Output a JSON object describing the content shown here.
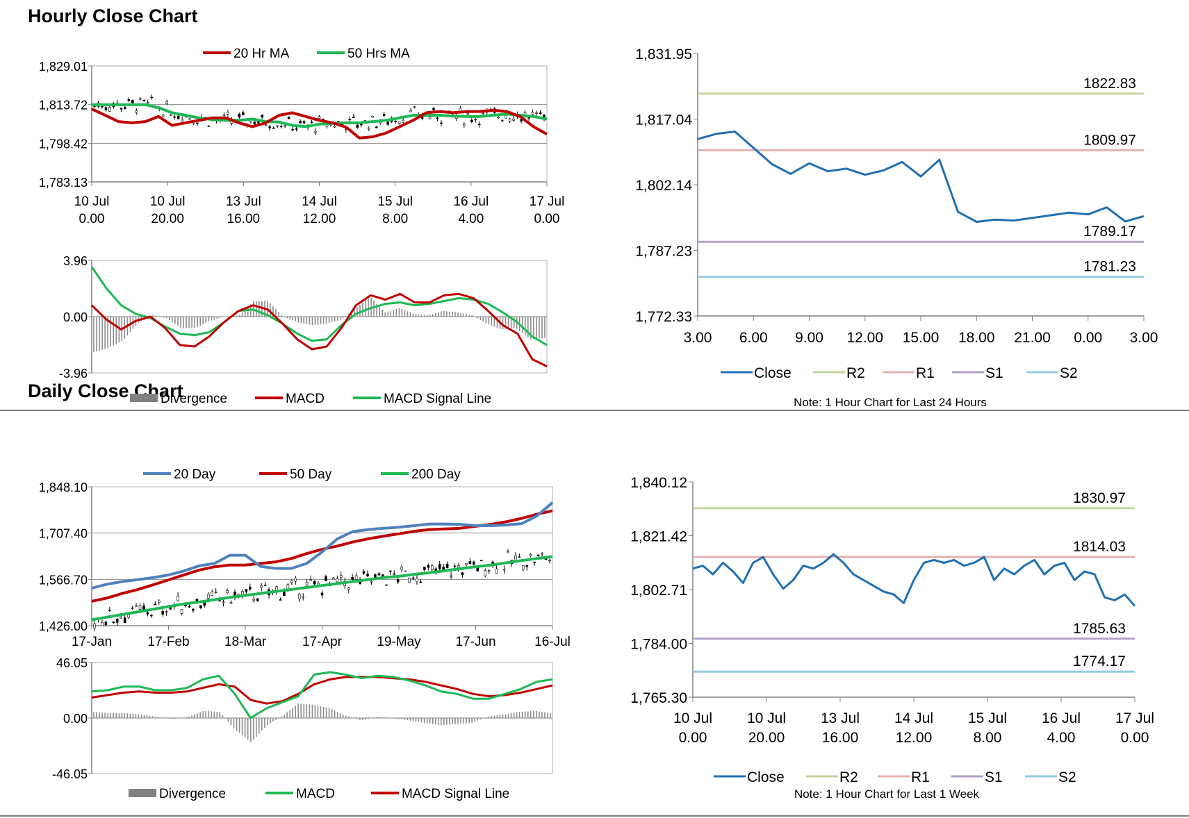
{
  "sections": {
    "hourly_title": "Hourly Close Chart",
    "daily_title": "Daily Close Chart"
  },
  "colors": {
    "red": "#c00000",
    "green": "#1db954",
    "blue_ma": "#4f81bd",
    "close": "#1f6fb2",
    "R2": "#c3d69b",
    "R1": "#e6b0b0",
    "S1": "#b1a0c7",
    "S2": "#93cddd",
    "grid": "#808080",
    "bar": "#808080",
    "candle": "#000000"
  },
  "chart_data": [
    {
      "id": "hourly-price",
      "type": "candlestick+line",
      "legend": [
        "20 Hr MA",
        "50 Hrs MA"
      ],
      "yticks": [
        "1,829.01",
        "1,813.72",
        "1,798.42",
        "1,783.13"
      ],
      "ylim": [
        1783.13,
        1829.01
      ],
      "xticks": [
        [
          "10 Jul",
          "0.00"
        ],
        [
          "10 Jul",
          "20.00"
        ],
        [
          "13 Jul",
          "16.00"
        ],
        [
          "14 Jul",
          "12.00"
        ],
        [
          "15 Jul",
          "8.00"
        ],
        [
          "16 Jul",
          "4.00"
        ],
        [
          "17 Jul",
          "0.00"
        ]
      ],
      "ma20": [
        1812,
        1809.5,
        1807,
        1806.5,
        1807,
        1809,
        1805.5,
        1806.5,
        1807.5,
        1808.5,
        1808.5,
        1806.5,
        1805,
        1806.5,
        1809.5,
        1810.5,
        1809,
        1807.5,
        1806.5,
        1804.8,
        1800.5,
        1801,
        1802.5,
        1805,
        1807.5,
        1810.5,
        1811,
        1810.5,
        1811,
        1811,
        1811.5,
        1811,
        1809,
        1805,
        1802
      ],
      "ma50": [
        1813.7,
        1813.7,
        1813.7,
        1813.7,
        1813.7,
        1812.5,
        1810.5,
        1809.5,
        1808.5,
        1807.8,
        1807.5,
        1807.5,
        1808,
        1807,
        1806.8,
        1805.5,
        1805,
        1806,
        1806.3,
        1806.5,
        1806.5,
        1807,
        1807.5,
        1808.5,
        1809.5,
        1809.5,
        1809.5,
        1809.2,
        1809,
        1809,
        1809.5,
        1810,
        1809.5,
        1809,
        1808
      ]
    },
    {
      "id": "hourly-macd",
      "type": "macd",
      "legend": [
        "Divergence",
        "MACD",
        "MACD Signal Line"
      ],
      "yticks": [
        "3.96",
        "0.00",
        "-3.96"
      ],
      "ylim": [
        -3.96,
        3.96
      ],
      "macd": [
        0.8,
        -0.2,
        -0.9,
        -0.3,
        0.0,
        -0.8,
        -2.0,
        -2.1,
        -1.4,
        -0.4,
        0.4,
        0.8,
        0.5,
        -0.5,
        -1.6,
        -2.3,
        -2.1,
        -0.8,
        0.8,
        1.5,
        1.2,
        1.6,
        1.0,
        1.0,
        1.5,
        1.6,
        1.3,
        0.4,
        -0.6,
        -1.2,
        -3.0,
        -3.5
      ],
      "signal": [
        3.5,
        2.0,
        0.8,
        0.2,
        -0.1,
        -0.7,
        -1.2,
        -1.3,
        -1.1,
        -0.4,
        0.4,
        0.5,
        0.1,
        -0.5,
        -1.2,
        -1.7,
        -1.6,
        -0.6,
        0.2,
        0.6,
        0.9,
        1.0,
        0.8,
        0.9,
        1.1,
        1.3,
        1.2,
        0.9,
        0.3,
        -0.4,
        -1.4,
        -2.0
      ],
      "divergence": [
        -2.5,
        -2.2,
        -1.7,
        -0.5,
        0.1,
        -0.1,
        -0.8,
        -0.8,
        -0.3,
        0.0,
        0.1,
        1.1,
        1.1,
        0.0,
        -0.4,
        -0.6,
        -0.5,
        -0.2,
        0.6,
        1.4,
        0.3,
        0.6,
        0.2,
        0.1,
        0.4,
        0.3,
        0.1,
        -0.5,
        -0.9,
        -0.8,
        -1.6,
        -1.5
      ]
    },
    {
      "id": "hourly-close-24h",
      "type": "line",
      "legend": [
        "Close",
        "R2",
        "R1",
        "S1",
        "S2"
      ],
      "yticks": [
        "1,831.95",
        "1,817.04",
        "1,802.14",
        "1,787.23",
        "1,772.33"
      ],
      "ylim": [
        1772.33,
        1831.95
      ],
      "xticks": [
        "3.00",
        "6.00",
        "9.00",
        "12.00",
        "15.00",
        "18.00",
        "21.00",
        "0.00",
        "3.00"
      ],
      "levels": {
        "R2": 1822.83,
        "R1": 1809.97,
        "S1": 1789.17,
        "S2": 1781.23
      },
      "level_labels": {
        "R2": "1822.83",
        "R1": "1809.97",
        "S1": "1789.17",
        "S2": "1781.23"
      },
      "close": [
        1812.5,
        1813.7,
        1814.2,
        1810.5,
        1806.8,
        1804.6,
        1807.0,
        1805.2,
        1805.8,
        1804.4,
        1805.4,
        1807.3,
        1804.0,
        1807.8,
        1796.0,
        1793.7,
        1794.2,
        1794.0,
        1794.6,
        1795.2,
        1795.8,
        1795.4,
        1797.0,
        1793.8,
        1795.0
      ],
      "note": "Note: 1 Hour Chart for Last 24 Hours"
    },
    {
      "id": "daily-price",
      "type": "candlestick+line",
      "legend": [
        "20 Day",
        "50 Day",
        "200 Day"
      ],
      "yticks": [
        "1,848.10",
        "1,707.40",
        "1,566.70",
        "1,426.00"
      ],
      "ylim": [
        1426.0,
        1848.1
      ],
      "xticks": [
        "17-Jan",
        "17-Feb",
        "18-Mar",
        "17-Apr",
        "19-May",
        "17-Jun",
        "16-Jul"
      ],
      "ma20": [
        1540,
        1552,
        1560,
        1566,
        1572,
        1580,
        1592,
        1608,
        1615,
        1640,
        1640,
        1606,
        1600,
        1600,
        1615,
        1650,
        1690,
        1712,
        1718,
        1722,
        1725,
        1730,
        1735,
        1735,
        1734,
        1730,
        1730,
        1732,
        1736,
        1760,
        1800
      ],
      "ma50": [
        1500,
        1510,
        1524,
        1536,
        1550,
        1565,
        1580,
        1595,
        1605,
        1610,
        1610,
        1615,
        1620,
        1630,
        1645,
        1658,
        1668,
        1680,
        1690,
        1698,
        1705,
        1713,
        1718,
        1720,
        1722,
        1728,
        1734,
        1742,
        1752,
        1765,
        1775
      ],
      "ma200": [
        1444,
        1452,
        1460,
        1468,
        1476,
        1484,
        1492,
        1498,
        1505,
        1512,
        1518,
        1524,
        1530,
        1536,
        1542,
        1548,
        1554,
        1560,
        1566,
        1572,
        1576,
        1582,
        1587,
        1593,
        1599,
        1605,
        1610,
        1617,
        1624,
        1630,
        1636
      ]
    },
    {
      "id": "daily-macd",
      "type": "macd",
      "legend": [
        "Divergence",
        "MACD",
        "MACD Signal Line"
      ],
      "yticks": [
        "46.05",
        "0.00",
        "-46.05"
      ],
      "ylim": [
        -46.05,
        46.05
      ],
      "macd": [
        22,
        23,
        26,
        26,
        23,
        23,
        25,
        32,
        35,
        20,
        0,
        8,
        13,
        18,
        36,
        38,
        36,
        33,
        35,
        34,
        31,
        27,
        22,
        20,
        16,
        16,
        20,
        24,
        30,
        32
      ],
      "signal": [
        17,
        19,
        21,
        22,
        21,
        21,
        22,
        25,
        28,
        26,
        15,
        12,
        14,
        20,
        28,
        32,
        34,
        34,
        34,
        33,
        32,
        30,
        27,
        24,
        20,
        18,
        19,
        21,
        24,
        27
      ],
      "divergence": [
        5,
        4,
        4,
        3,
        1,
        -1,
        1,
        6,
        5,
        -10,
        -20,
        -6,
        2,
        12,
        11,
        8,
        2,
        -2,
        1,
        0,
        -2,
        -4,
        -6,
        -5,
        -4,
        1,
        3,
        5,
        6,
        4
      ]
    },
    {
      "id": "hourly-close-week",
      "type": "line",
      "legend": [
        "Close",
        "R2",
        "R1",
        "S1",
        "S2"
      ],
      "yticks": [
        "1,840.12",
        "1,821.42",
        "1,802.71",
        "1,784.00",
        "1,765.30"
      ],
      "ylim": [
        1765.3,
        1840.12
      ],
      "xticks": [
        [
          "10 Jul",
          "0.00"
        ],
        [
          "10 Jul",
          "20.00"
        ],
        [
          "13 Jul",
          "16.00"
        ],
        [
          "14 Jul",
          "12.00"
        ],
        [
          "15 Jul",
          "8.00"
        ],
        [
          "16 Jul",
          "4.00"
        ],
        [
          "17 Jul",
          "0.00"
        ]
      ],
      "levels": {
        "R2": 1830.97,
        "R1": 1814.03,
        "S1": 1785.63,
        "S2": 1774.17
      },
      "level_labels": {
        "R2": "1830.97",
        "R1": "1814.03",
        "S1": "1785.63",
        "S2": "1774.17"
      },
      "close": [
        1810,
        1811,
        1808,
        1812,
        1809,
        1805,
        1812,
        1814,
        1808,
        1803,
        1806,
        1811,
        1810,
        1812,
        1815,
        1812,
        1808,
        1806,
        1804,
        1802,
        1801,
        1798,
        1806,
        1812,
        1813,
        1812,
        1813,
        1811,
        1812,
        1814,
        1806,
        1810,
        1808,
        1811,
        1813,
        1808,
        1811,
        1812,
        1806,
        1809,
        1808,
        1800,
        1799,
        1801,
        1797
      ],
      "note": "Note: 1 Hour Chart for Last 1 Week"
    }
  ]
}
